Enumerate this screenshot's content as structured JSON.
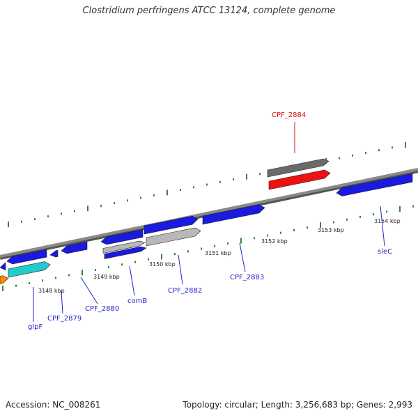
{
  "title": "Clostridium perfringens ATCC 13124, complete genome",
  "footer": {
    "accession": "Accession: NC_008261",
    "summary": "Topology: circular; Length: 3,256,683 bp; Genes: 2,993"
  },
  "colors": {
    "backbone": "#8a8a8a",
    "tick_major": "#2e8b2e",
    "tick_minor": "#2e8b2e",
    "scale_text": "#222222",
    "gene_label": "#2222cc",
    "highlight_label": "#dd1111",
    "blue": "#1a1ae0",
    "red": "#ee1111",
    "cyan": "#22cccc",
    "orange": "#ff8c00",
    "gray_dark": "#6a6a6a",
    "gray_light": "#b8b8b8"
  },
  "scale_labels": [
    "3148 kbp",
    "3149 kbp",
    "3150 kbp",
    "3151 kbp",
    "3152 kbp",
    "3153 kbp",
    "3154 kbp"
  ],
  "gene_labels": [
    {
      "name": "glpF",
      "color": "blue"
    },
    {
      "name": "CPF_2879",
      "color": "blue"
    },
    {
      "name": "CPF_2880",
      "color": "blue"
    },
    {
      "name": "comB",
      "color": "blue"
    },
    {
      "name": "CPF_2882",
      "color": "blue"
    },
    {
      "name": "CPF_2883",
      "color": "blue"
    },
    {
      "name": "sleC",
      "color": "blue"
    },
    {
      "name": "CPF_2884",
      "color": "red"
    }
  ],
  "features": [
    {
      "name": "feature-orange-1",
      "color": "orange"
    },
    {
      "name": "feature-blue-1",
      "color": "blue"
    },
    {
      "name": "feature-blue-2",
      "color": "blue"
    },
    {
      "name": "feature-cyan-1",
      "color": "cyan"
    },
    {
      "name": "feature-blue-3",
      "color": "blue"
    },
    {
      "name": "feature-blue-4",
      "color": "blue"
    },
    {
      "name": "feature-blue-5",
      "color": "blue"
    },
    {
      "name": "feature-gray-1",
      "color": "gray_light"
    },
    {
      "name": "feature-blue-6",
      "color": "blue"
    },
    {
      "name": "feature-blue-7",
      "color": "blue"
    },
    {
      "name": "feature-gray-2",
      "color": "gray_light"
    },
    {
      "name": "feature-blue-8",
      "color": "blue"
    },
    {
      "name": "feature-gray-3",
      "color": "gray_dark"
    },
    {
      "name": "feature-red-1",
      "color": "red"
    },
    {
      "name": "feature-blue-9",
      "color": "blue"
    }
  ]
}
